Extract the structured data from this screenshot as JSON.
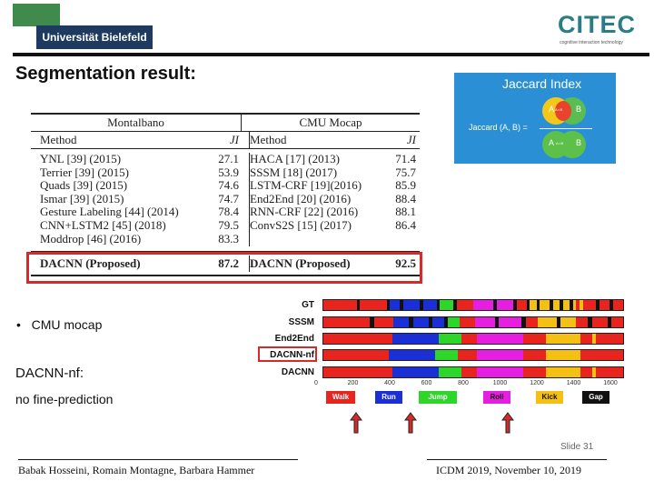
{
  "header": {
    "university": "Universität Bielefeld",
    "citec": "CITEC",
    "citec_sub": "cognitive interaction technology"
  },
  "slide_title": "Segmentation result:",
  "table": {
    "group_left": "Montalbano",
    "group_right": "CMU Mocap",
    "col_method": "Method",
    "col_ji": "JI",
    "left_rows": [
      {
        "method": "YNL [39] (2015)",
        "ji": "27.1"
      },
      {
        "method": "Terrier [39] (2015)",
        "ji": "53.9"
      },
      {
        "method": "Quads [39] (2015)",
        "ji": "74.6"
      },
      {
        "method": "Ismar [39] (2015)",
        "ji": "74.7"
      },
      {
        "method": "Gesture Labeling [44] (2014)",
        "ji": "78.4"
      },
      {
        "method": "CNN+LSTM2 [45] (2018)",
        "ji": "79.5"
      },
      {
        "method": "Moddrop [46] (2016)",
        "ji": "83.3"
      }
    ],
    "right_rows": [
      {
        "method": "HACA [17] (2013)",
        "ji": "71.4"
      },
      {
        "method": "SSSM [18] (2017)",
        "ji": "75.7"
      },
      {
        "method": "LSTM-CRF [19](2016)",
        "ji": "85.9"
      },
      {
        "method": "End2End [20] (2016)",
        "ji": "88.4"
      },
      {
        "method": "RNN-CRF [22] (2016)",
        "ji": "88.1"
      },
      {
        "method": "ConvS2S [15] (2017)",
        "ji": "86.4"
      },
      {
        "method": "",
        "ji": ""
      }
    ],
    "proposed_left": {
      "method": "DACNN (Proposed)",
      "ji": "87.2"
    },
    "proposed_right": {
      "method": "DACNN (Proposed)",
      "ji": "92.5"
    }
  },
  "jaccard": {
    "title": "Jaccard Index",
    "formula": "Jaccard (A, B) =",
    "a": "A",
    "b": "B",
    "a_and_b": "A∩B"
  },
  "bullet_text": "CMU mocap",
  "dacnn_nf_label": "DACNN-nf:",
  "no_fine": "no fine-prediction",
  "sequences": {
    "labels": [
      "GT",
      "SSSM",
      "End2End",
      "DACNN-nf",
      "DACNN"
    ],
    "axis_ticks": [
      "0",
      "200",
      "400",
      "600",
      "800",
      "1000",
      "1200",
      "1400",
      "1600"
    ],
    "legend": [
      {
        "name": "Walk",
        "color": "#e8241f"
      },
      {
        "name": "Run",
        "color": "#1a2fd6"
      },
      {
        "name": "Jump",
        "color": "#2fd62a"
      },
      {
        "name": "Roll",
        "color": "#e61ee0"
      },
      {
        "name": "Kick",
        "color": "#f5c014"
      },
      {
        "name": "Gap",
        "color": "#111111"
      }
    ]
  },
  "footer": {
    "slide": "Slide 31",
    "authors": "Babak Hosseini, Romain Montagne, Barbara Hammer",
    "conference": "ICDM 2019, November 10, 2019"
  }
}
